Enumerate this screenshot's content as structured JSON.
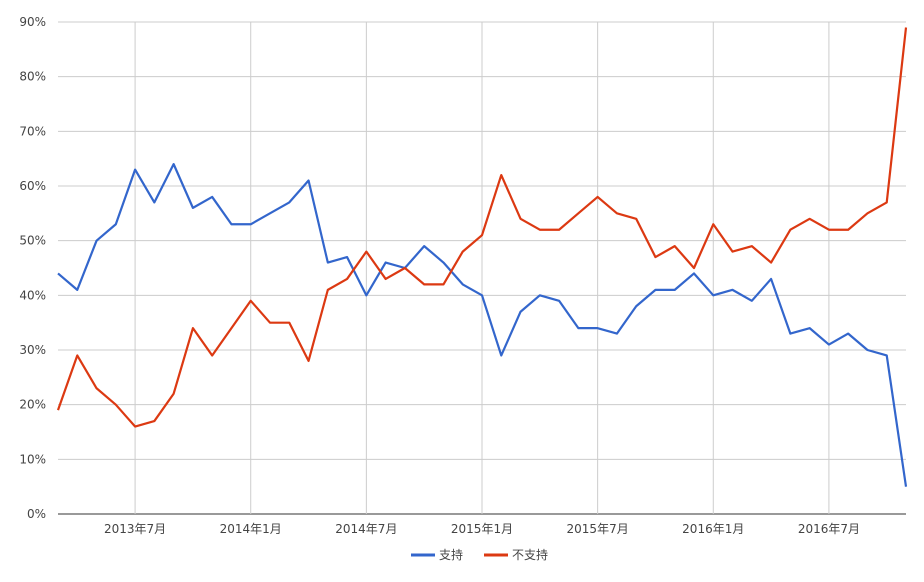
{
  "chart_data": {
    "type": "line",
    "title": "",
    "xlabel": "",
    "ylabel": "",
    "ylim": [
      0,
      90
    ],
    "grid": true,
    "legend_position": "bottom",
    "y_ticks": [
      "0%",
      "10%",
      "20%",
      "30%",
      "40%",
      "50%",
      "60%",
      "70%",
      "80%",
      "90%"
    ],
    "x_ticks": [
      "2013年7月",
      "2014年1月",
      "2014年7月",
      "2015年1月",
      "2015年7月",
      "2016年1月",
      "2016年7月"
    ],
    "x_tick_indices": [
      4,
      10,
      16,
      22,
      28,
      34,
      40
    ],
    "series": [
      {
        "name": "支持",
        "color": "#3366cc",
        "values": [
          44,
          41,
          50,
          53,
          63,
          57,
          64,
          56,
          58,
          53,
          53,
          55,
          57,
          61,
          46,
          47,
          40,
          46,
          45,
          49,
          46,
          42,
          40,
          29,
          37,
          40,
          39,
          34,
          34,
          33,
          38,
          41,
          41,
          44,
          40,
          41,
          39,
          43,
          33,
          34,
          31,
          33,
          30,
          29,
          5
        ]
      },
      {
        "name": "不支持",
        "color": "#dc3912",
        "values": [
          19,
          29,
          23,
          20,
          16,
          17,
          22,
          34,
          29,
          34,
          39,
          35,
          35,
          28,
          41,
          43,
          48,
          43,
          45,
          42,
          42,
          48,
          51,
          62,
          54,
          52,
          52,
          55,
          58,
          55,
          54,
          47,
          49,
          45,
          53,
          48,
          49,
          46,
          52,
          54,
          52,
          52,
          55,
          57,
          89
        ]
      }
    ]
  }
}
